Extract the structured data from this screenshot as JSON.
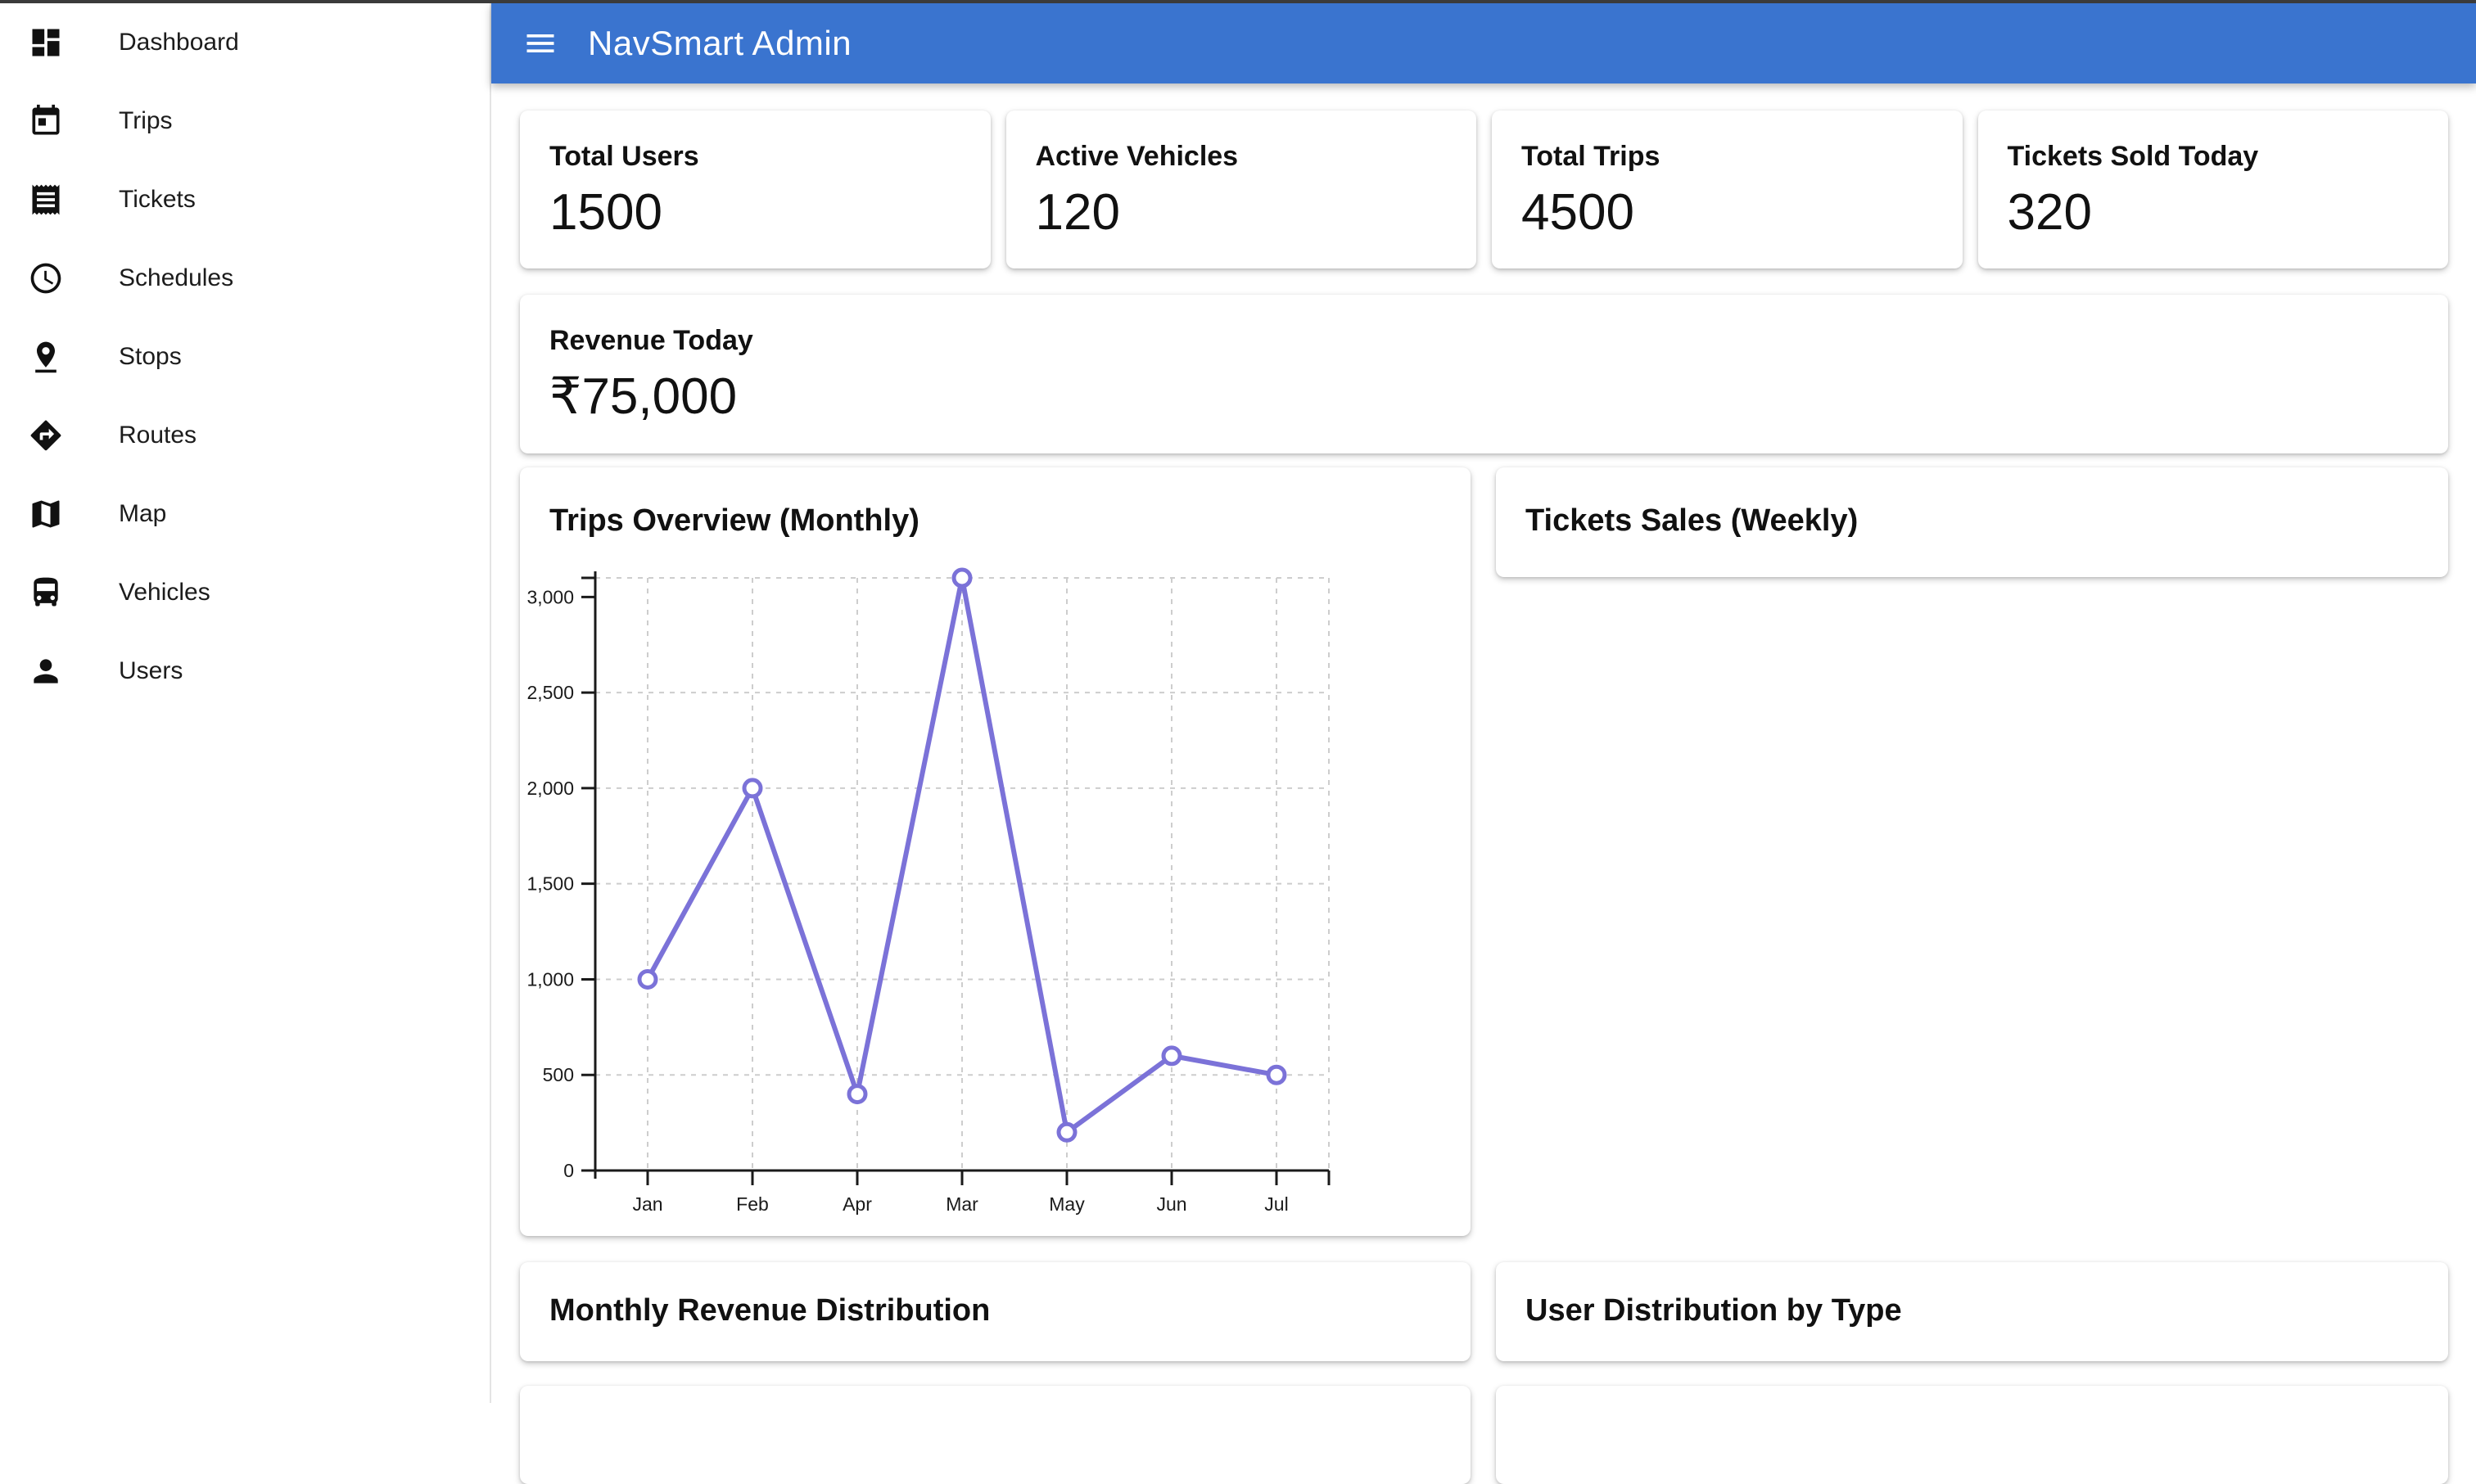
{
  "colors": {
    "appbar_blue": "#3a74cf",
    "top_strip": "#3b3b3b",
    "chart_line": "#7b72d8",
    "grid_line": "#cdcdcd",
    "axis_line": "#1a1a1a"
  },
  "header": {
    "title": "NavSmart Admin"
  },
  "sidebar": {
    "items": [
      {
        "label": "Dashboard"
      },
      {
        "label": "Trips"
      },
      {
        "label": "Tickets"
      },
      {
        "label": "Schedules"
      },
      {
        "label": "Stops"
      },
      {
        "label": "Routes"
      },
      {
        "label": "Map"
      },
      {
        "label": "Vehicles"
      },
      {
        "label": "Users"
      }
    ]
  },
  "stats": [
    {
      "label": "Total Users",
      "value": "1500"
    },
    {
      "label": "Active Vehicles",
      "value": "120"
    },
    {
      "label": "Total Trips",
      "value": "4500"
    },
    {
      "label": "Tickets Sold Today",
      "value": "320"
    }
  ],
  "revenue": {
    "label": "Revenue Today",
    "value": "₹75,000"
  },
  "panels": {
    "trips_title": "Trips Overview (Monthly)",
    "tickets_title": "Tickets Sales (Weekly)",
    "monthly_revenue_title": "Monthly Revenue Distribution",
    "user_distribution_title": "User Distribution by Type"
  },
  "chart_data": {
    "type": "line",
    "title": "Trips Overview (Monthly)",
    "categories": [
      "Jan",
      "Feb",
      "Apr",
      "Mar",
      "May",
      "Jun",
      "Jul"
    ],
    "values": [
      1000,
      2000,
      400,
      3100,
      200,
      600,
      500
    ],
    "xlabel": "",
    "ylabel": "",
    "ylim": [
      0,
      3100
    ],
    "ytick_step": 500,
    "grid": "dashed",
    "legend": "none",
    "line_color": "#7b72d8",
    "point_style": "open-circle"
  }
}
